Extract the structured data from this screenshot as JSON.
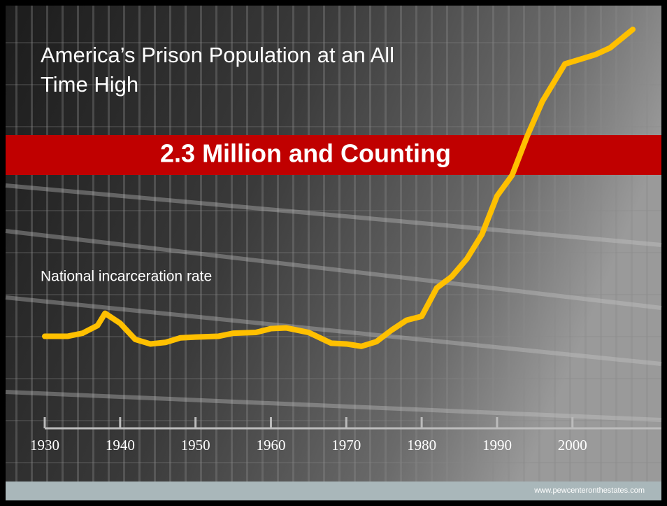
{
  "chart_data": {
    "type": "line",
    "title": "America’s Prison Population at an All Time High",
    "subtitle": "2.3 Million and Counting",
    "annotation": "National incarceration rate",
    "source": "www.pewcenteronthestates.com",
    "x": [
      1930,
      1933,
      1935,
      1937,
      1938,
      1940,
      1942,
      1944,
      1946,
      1948,
      1950,
      1953,
      1955,
      1958,
      1960,
      1962,
      1965,
      1968,
      1970,
      1972,
      1974,
      1976,
      1978,
      1980,
      1982,
      1984,
      1986,
      1988,
      1990,
      1992,
      1994,
      1996,
      1999,
      2001,
      2003,
      2005,
      2008
    ],
    "series": [
      {
        "name": "National incarceration rate",
        "color": "#ffc000",
        "values": [
          109,
          109,
          113,
          123,
          139,
          126,
          105,
          99,
          101,
          107,
          108,
          109,
          113,
          114,
          119,
          120,
          114,
          100,
          99,
          96,
          102,
          117,
          130,
          135,
          172,
          187,
          210,
          242,
          292,
          319,
          370,
          415,
          464,
          470,
          476,
          485,
          509
        ]
      }
    ],
    "xlim": [
      1930,
      2011.8
    ],
    "xticks": [
      1930,
      1940,
      1950,
      1960,
      1970,
      1980,
      1990,
      2000
    ],
    "ylim": [
      0,
      520
    ]
  }
}
